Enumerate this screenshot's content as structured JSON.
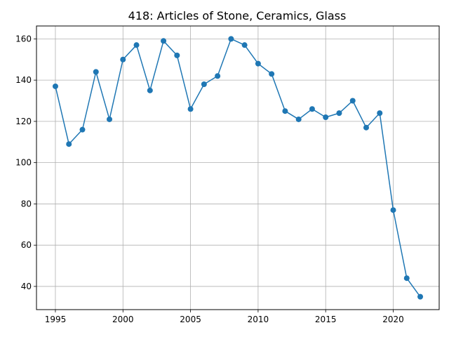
{
  "chart_data": {
    "type": "line",
    "title": "418: Articles of Stone, Ceramics, Glass",
    "xlabel": "",
    "ylabel": "",
    "xlim": [
      1993.6,
      2023.4
    ],
    "ylim": [
      28.75,
      166.25
    ],
    "xticks": [
      1995,
      2000,
      2005,
      2010,
      2015,
      2020
    ],
    "yticks": [
      40,
      60,
      80,
      100,
      120,
      140,
      160
    ],
    "grid": true,
    "series": [
      {
        "color": "#1f77b4",
        "marker": "circle",
        "x": [
          1995,
          1996,
          1997,
          1998,
          1999,
          2000,
          2001,
          2002,
          2003,
          2004,
          2005,
          2006,
          2007,
          2008,
          2009,
          2010,
          2011,
          2012,
          2013,
          2014,
          2015,
          2016,
          2017,
          2018,
          2019,
          2020,
          2021,
          2022
        ],
        "y": [
          137,
          109,
          116,
          144,
          121,
          150,
          157,
          135,
          159,
          152,
          126,
          138,
          142,
          160,
          157,
          148,
          143,
          125,
          121,
          126,
          122,
          124,
          130,
          117,
          124,
          77,
          44,
          35
        ]
      }
    ]
  }
}
